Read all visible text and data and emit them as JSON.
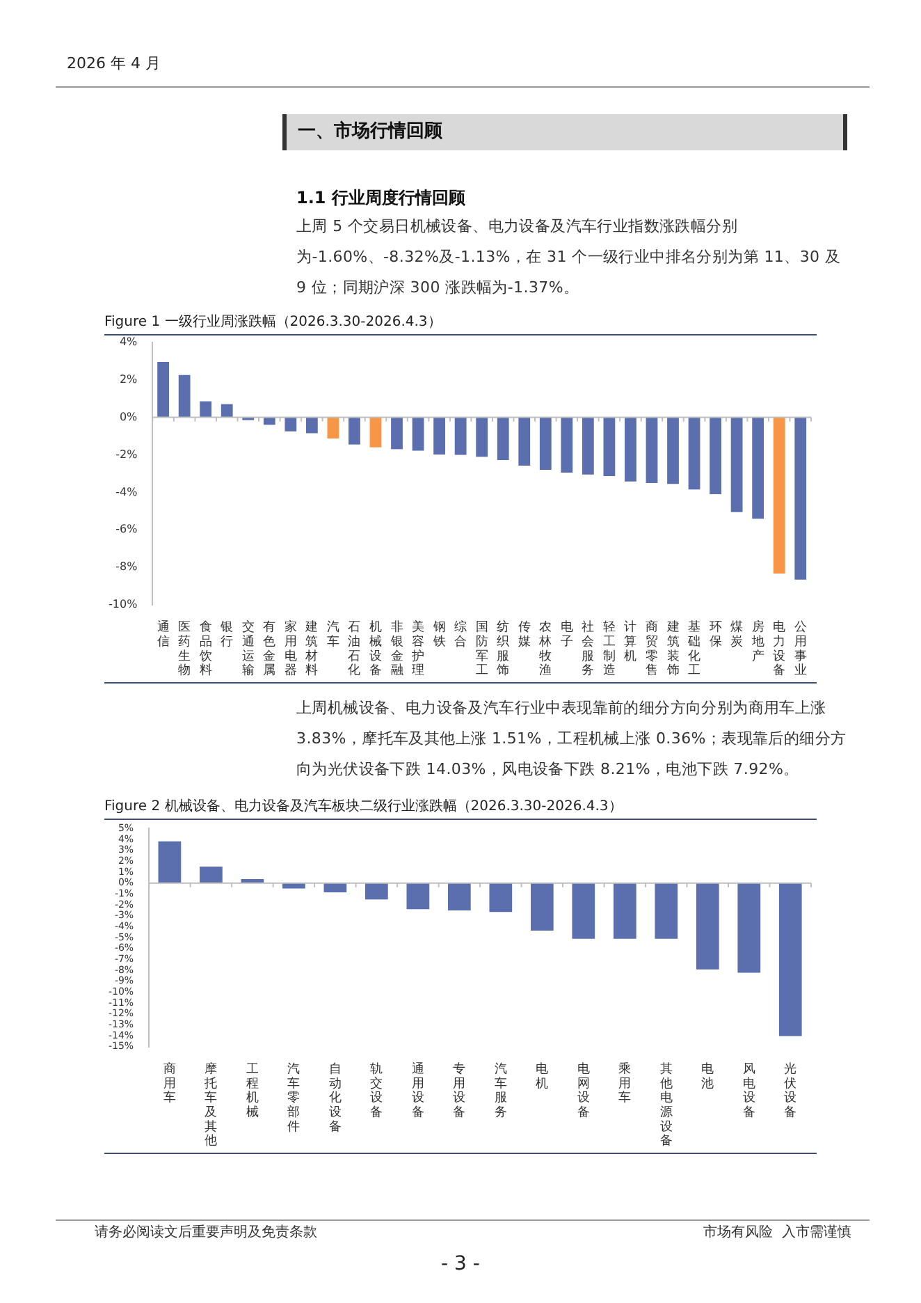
{
  "chart_data": [
    {
      "type": "bar",
      "title": "Figure 1  一级行业周涨跌幅（2026.3.30-2026.4.3）",
      "annotations": [
        "2026 年 4 月",
        "一、市场行情回顾",
        "1.1 行业周度行情回顾",
        "上周 5 个交易日机械设备、电力设备及汽车行业指数涨跌幅分别为-1.60%、-8.32%及-1.13%，在 31 个一级行业中排名分别为第 11、30 及 9 位；同期沪深 300 涨跌幅为-1.37%。"
      ],
      "categories": [
        "通信",
        "医药生物",
        "食品饮料",
        "银行",
        "交通运输",
        "有色金属",
        "家用电器",
        "建筑材料",
        "汽车",
        "石油石化",
        "机械设备",
        "非银金融",
        "美容护理",
        "钢铁",
        "综合",
        "国防军工",
        "纺织服饰",
        "传媒",
        "农林牧渔",
        "电子",
        "社会服务",
        "轻工制造",
        "计算机",
        "商贸零售",
        "建筑装饰",
        "基础化工",
        "环保",
        "煤炭",
        "房地产",
        "电力设备",
        "公用事业"
      ],
      "values": [
        2.95,
        2.25,
        0.85,
        0.7,
        -0.15,
        -0.4,
        -0.75,
        -0.85,
        -1.13,
        -1.45,
        -1.6,
        -1.7,
        -1.78,
        -1.98,
        -2.0,
        -2.1,
        -2.28,
        -2.58,
        -2.8,
        -2.95,
        -3.05,
        -3.13,
        -3.42,
        -3.5,
        -3.55,
        -3.85,
        -4.1,
        -5.05,
        -5.4,
        -8.32,
        -8.65
      ],
      "colors": [
        "#5b6fae",
        "#5b6fae",
        "#5b6fae",
        "#5b6fae",
        "#5b6fae",
        "#5b6fae",
        "#5b6fae",
        "#5b6fae",
        "#f79646",
        "#5b6fae",
        "#f79646",
        "#5b6fae",
        "#5b6fae",
        "#5b6fae",
        "#5b6fae",
        "#5b6fae",
        "#5b6fae",
        "#5b6fae",
        "#5b6fae",
        "#5b6fae",
        "#5b6fae",
        "#5b6fae",
        "#5b6fae",
        "#5b6fae",
        "#5b6fae",
        "#5b6fae",
        "#5b6fae",
        "#5b6fae",
        "#5b6fae",
        "#f79646",
        "#5b6fae"
      ],
      "ylim": [
        -10,
        4
      ],
      "yticks": [
        {
          "value": -10,
          "label": "-10%"
        },
        {
          "value": -8,
          "label": "-8%"
        },
        {
          "value": -6,
          "label": "-6%"
        },
        {
          "value": -4,
          "label": "-4%"
        },
        {
          "value": -2,
          "label": "-2%"
        },
        {
          "value": 0,
          "label": "0%"
        },
        {
          "value": 2,
          "label": "2%"
        },
        {
          "value": 4,
          "label": "4%"
        }
      ]
    },
    {
      "type": "bar",
      "title": "Figure 2  机械设备、电力设备及汽车板块二级行业涨跌幅（2026.3.30-2026.4.3）",
      "annotations": [
        "上周机械设备、电力设备及汽车行业中表现靠前的细分方向分别为商用车上涨 3.83%，摩托车及其他上涨 1.51%，工程机械上涨 0.36%；表现靠后的细分方向为光伏设备下跌 14.03%，风电设备下跌 8.21%，电池下跌 7.92%。",
        "请务必阅读文后重要声明及免责条款",
        "市场有风险  入市需谨慎",
        "- 3 -"
      ],
      "categories": [
        "商用车",
        "摩托车及其他",
        "工程机械",
        "汽车零部件",
        "自动化设备",
        "轨交设备",
        "通用设备",
        "专用设备",
        "汽车服务",
        "电机",
        "电网设备",
        "乘用车",
        "其他电源设备",
        "电池",
        "风电设备",
        "光伏设备"
      ],
      "values": [
        3.83,
        1.51,
        0.36,
        -0.5,
        -0.85,
        -1.5,
        -2.4,
        -2.5,
        -2.65,
        -4.35,
        -5.1,
        -5.1,
        -5.1,
        -7.92,
        -8.21,
        -14.03
      ],
      "color": "#5b6fae",
      "ylim": [
        -15,
        5
      ],
      "yticks": [
        {
          "value": -15,
          "label": "-15%"
        },
        {
          "value": -14,
          "label": "-14%"
        },
        {
          "value": -13,
          "label": "-13%"
        },
        {
          "value": -12,
          "label": "-12%"
        },
        {
          "value": -11,
          "label": "-11%"
        },
        {
          "value": -10,
          "label": "-10%"
        },
        {
          "value": -9,
          "label": "-9%"
        },
        {
          "value": -8,
          "label": "-8%"
        },
        {
          "value": -7,
          "label": "-7%"
        },
        {
          "value": -6,
          "label": "-6%"
        },
        {
          "value": -5,
          "label": "-5%"
        },
        {
          "value": -4,
          "label": "-4%"
        },
        {
          "value": -3,
          "label": "-3%"
        },
        {
          "value": -2,
          "label": "-2%"
        },
        {
          "value": -1,
          "label": "-1%"
        },
        {
          "value": 0,
          "label": "0%"
        },
        {
          "value": 1,
          "label": "1%"
        },
        {
          "value": 2,
          "label": "2%"
        },
        {
          "value": 3,
          "label": "3%"
        },
        {
          "value": 4,
          "label": "4%"
        },
        {
          "value": 5,
          "label": "5%"
        }
      ]
    }
  ]
}
